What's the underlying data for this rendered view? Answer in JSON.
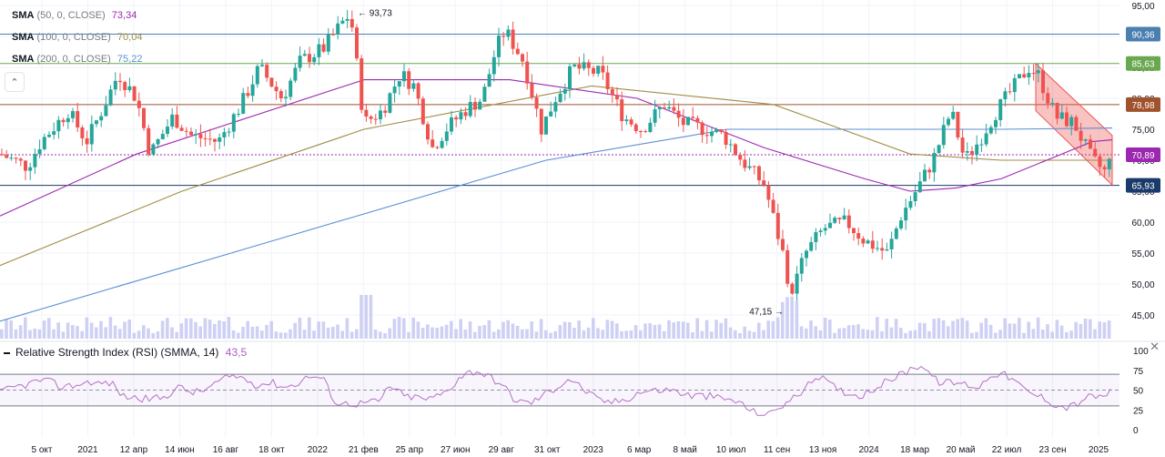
{
  "legend": {
    "sma50": {
      "name": "SMA",
      "params": "(50, 0, CLOSE)",
      "value": "73,34",
      "color": "#9c27b0"
    },
    "sma100": {
      "name": "SMA",
      "params": "(100, 0, CLOSE)",
      "value": "70,04",
      "color": "#a08c44"
    },
    "sma200": {
      "name": "SMA",
      "params": "(200, 0, CLOSE)",
      "value": "75,22",
      "color": "#5b8fd6"
    }
  },
  "rsi": {
    "title": "Relative Strength Index (RSI) (SMMA, 14)",
    "value": "43,5",
    "color": "#b05cc2"
  },
  "colors": {
    "up": "#26a69a",
    "down": "#ef5350",
    "volume": "#c6c8f2",
    "rsi_line": "#b570c5",
    "grid": "#f0f3fa"
  },
  "chart_data": [
    {
      "type": "candlestick",
      "y_ticks": [
        "95,00",
        "90,00",
        "85,00",
        "80,00",
        "75,00",
        "70,00",
        "65,00",
        "60,00",
        "55,00",
        "50,00",
        "45,00"
      ],
      "ylim": [
        40.5,
        95.5
      ],
      "x_ticks": [
        "5 окт",
        "2021",
        "12 апр",
        "14 июн",
        "16 авг",
        "18 окт",
        "2022",
        "21 фев",
        "25 апр",
        "27 июн",
        "29 авг",
        "31 окт",
        "2023",
        "6 мар",
        "8 май",
        "10 июл",
        "11 сен",
        "13 ноя",
        "2024",
        "18 мар",
        "20 май",
        "22 июл",
        "23 сен",
        "2025"
      ],
      "annotations": [
        {
          "text": "93,73",
          "value": 93.73,
          "kind": "high"
        },
        {
          "text": "47,15",
          "value": 47.15,
          "kind": "low"
        }
      ],
      "horizontal_levels": [
        {
          "value": 90.36,
          "label": "90,36",
          "color": "#4a7fb0"
        },
        {
          "value": 85.63,
          "label": "85,63",
          "color": "#6aa84f"
        },
        {
          "value": 78.98,
          "label": "78,98",
          "color": "#a0522d"
        },
        {
          "value": 70.89,
          "label": "70,89",
          "color": "#9c27b0"
        },
        {
          "value": 65.93,
          "label": "65,93",
          "color": "#1a3a6b"
        }
      ],
      "price_path": [
        [
          0,
          71
        ],
        [
          30,
          69
        ],
        [
          45,
          73
        ],
        [
          75,
          78
        ],
        [
          95,
          73
        ],
        [
          115,
          79
        ],
        [
          130,
          84
        ],
        [
          150,
          80
        ],
        [
          165,
          71
        ],
        [
          190,
          77
        ],
        [
          210,
          74
        ],
        [
          240,
          73
        ],
        [
          265,
          79
        ],
        [
          285,
          85
        ],
        [
          310,
          80
        ],
        [
          330,
          86
        ],
        [
          355,
          88
        ],
        [
          375,
          92
        ],
        [
          385,
          93.7
        ],
        [
          400,
          76
        ],
        [
          420,
          78
        ],
        [
          440,
          84
        ],
        [
          455,
          82
        ],
        [
          475,
          72
        ],
        [
          490,
          75
        ],
        [
          510,
          78
        ],
        [
          530,
          80
        ],
        [
          545,
          88
        ],
        [
          555,
          91
        ],
        [
          575,
          86
        ],
        [
          595,
          75
        ],
        [
          610,
          80
        ],
        [
          630,
          85
        ],
        [
          660,
          84
        ],
        [
          685,
          77
        ],
        [
          705,
          75
        ],
        [
          730,
          79
        ],
        [
          750,
          76
        ],
        [
          775,
          75
        ],
        [
          795,
          74
        ],
        [
          815,
          70
        ],
        [
          840,
          66
        ],
        [
          860,
          55
        ],
        [
          868,
          48
        ],
        [
          885,
          55
        ],
        [
          905,
          59
        ],
        [
          930,
          60
        ],
        [
          950,
          57
        ],
        [
          975,
          55
        ],
        [
          990,
          61
        ],
        [
          1010,
          66
        ],
        [
          1025,
          70
        ],
        [
          1045,
          78
        ],
        [
          1060,
          70
        ],
        [
          1075,
          73
        ],
        [
          1095,
          78
        ],
        [
          1115,
          82
        ],
        [
          1130,
          85
        ],
        [
          1140,
          84
        ],
        [
          1160,
          77
        ],
        [
          1180,
          76
        ],
        [
          1200,
          70
        ],
        [
          1215,
          68
        ],
        [
          1222,
          71
        ]
      ],
      "sma50_path": [
        [
          0,
          61
        ],
        [
          150,
          71
        ],
        [
          400,
          83
        ],
        [
          560,
          83
        ],
        [
          700,
          80
        ],
        [
          840,
          72
        ],
        [
          950,
          67
        ],
        [
          1000,
          65
        ],
        [
          1050,
          65.5
        ],
        [
          1100,
          67
        ],
        [
          1150,
          70
        ],
        [
          1200,
          73
        ],
        [
          1222,
          73.3
        ]
      ],
      "sma100_path": [
        [
          0,
          53
        ],
        [
          200,
          65
        ],
        [
          400,
          75
        ],
        [
          650,
          82
        ],
        [
          850,
          79
        ],
        [
          1000,
          71
        ],
        [
          1100,
          70
        ],
        [
          1222,
          70
        ]
      ],
      "sma200_path": [
        [
          0,
          44
        ],
        [
          300,
          57
        ],
        [
          600,
          70
        ],
        [
          800,
          75
        ],
        [
          950,
          75
        ],
        [
          1100,
          75
        ],
        [
          1222,
          75.2
        ]
      ],
      "channel": {
        "upper": [
          [
            1138,
            85.6
          ],
          [
            1222,
            74
          ]
        ],
        "lower": [
          [
            1138,
            78
          ],
          [
            1222,
            66
          ]
        ]
      }
    },
    {
      "type": "line",
      "name": "RSI",
      "ylim": [
        0,
        100
      ],
      "y_ticks": [
        "100",
        "75",
        "50",
        "25",
        "0"
      ],
      "levels": [
        70,
        50,
        30
      ]
    }
  ]
}
